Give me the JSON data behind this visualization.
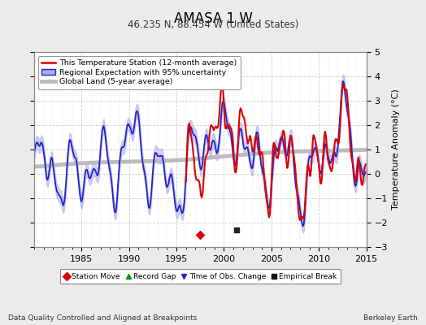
{
  "title": "AMASA 1 W",
  "subtitle": "46.235 N, 88.454 W (United States)",
  "ylabel": "Temperature Anomaly (°C)",
  "xlabel_left": "Data Quality Controlled and Aligned at Breakpoints",
  "xlabel_right": "Berkeley Earth",
  "year_start": 1980,
  "year_end": 2015,
  "ylim": [
    -3,
    5
  ],
  "yticks": [
    -3,
    -2,
    -1,
    0,
    1,
    2,
    3,
    4,
    5
  ],
  "xticks": [
    1985,
    1990,
    1995,
    2000,
    2005,
    2010,
    2015
  ],
  "legend_red_label": "This Temperature Station (12-month average)",
  "legend_blue_label": "Regional Expectation with 95% uncertainty",
  "legend_gray_label": "Global Land (5-year average)",
  "red_color": "#DD0000",
  "blue_color": "#2222CC",
  "blue_fill_color": "#AAAAEE",
  "gray_color": "#BBBBBB",
  "background_color": "#EBEBEB",
  "plot_bg_color": "#FFFFFF",
  "grid_color": "#CCCCCC",
  "marker_station_move_x": 1997.5,
  "marker_station_move_y": -2.5,
  "marker_empirical_break_x": 2001.3,
  "marker_empirical_break_y": -2.3,
  "bottom_label_left": "Data Quality Controlled and Aligned at Breakpoints",
  "bottom_label_right": "Berkeley Earth"
}
